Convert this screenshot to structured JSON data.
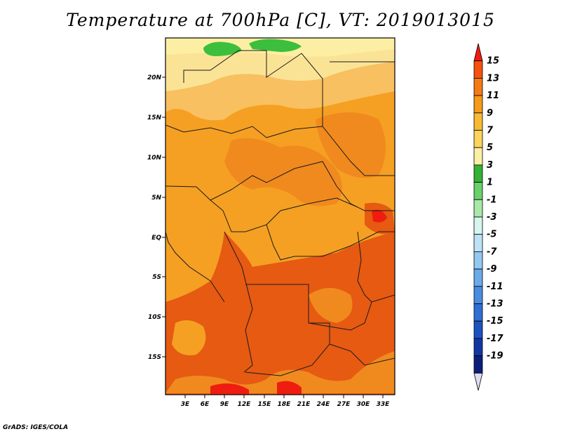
{
  "title": "Temperature at 700hPa [C], VT: 2019013015",
  "credit": "GrADS: IGES/COLA",
  "map": {
    "lat_labels": [
      "20N",
      "15N",
      "10N",
      "5N",
      "EQ",
      "5S",
      "10S",
      "15S"
    ],
    "lon_labels": [
      "3E",
      "6E",
      "9E",
      "12E",
      "15E",
      "18E",
      "21E",
      "24E",
      "27E",
      "30E",
      "33E"
    ],
    "colors": {
      "warm_dark": "#e65a12",
      "warm": "#f5a023",
      "orange_mid": "#f08a1e",
      "light_orange": "#f8c060",
      "pale_yellow": "#fbe396",
      "green": "#3cbf3c",
      "border": "#1a1a1a"
    }
  },
  "colorbar": {
    "labels": [
      "15",
      "13",
      "11",
      "9",
      "7",
      "5",
      "3",
      "1",
      "-1",
      "-3",
      "-5",
      "-7",
      "-9",
      "-11",
      "-13",
      "-15",
      "-17",
      "-19"
    ],
    "colors": [
      "#ef1c10",
      "#f6520e",
      "#f57a14",
      "#f59a1c",
      "#f8b934",
      "#fbd45e",
      "#fcefa4",
      "#33b233",
      "#6ad06a",
      "#a8e8a8",
      "#d6f4f0",
      "#bde2f6",
      "#93c8f0",
      "#6aaaea",
      "#4a8ce0",
      "#2f6ed2",
      "#1c52c0",
      "#1336a3",
      "#0b1f7a",
      "#dfdcf2"
    ]
  }
}
